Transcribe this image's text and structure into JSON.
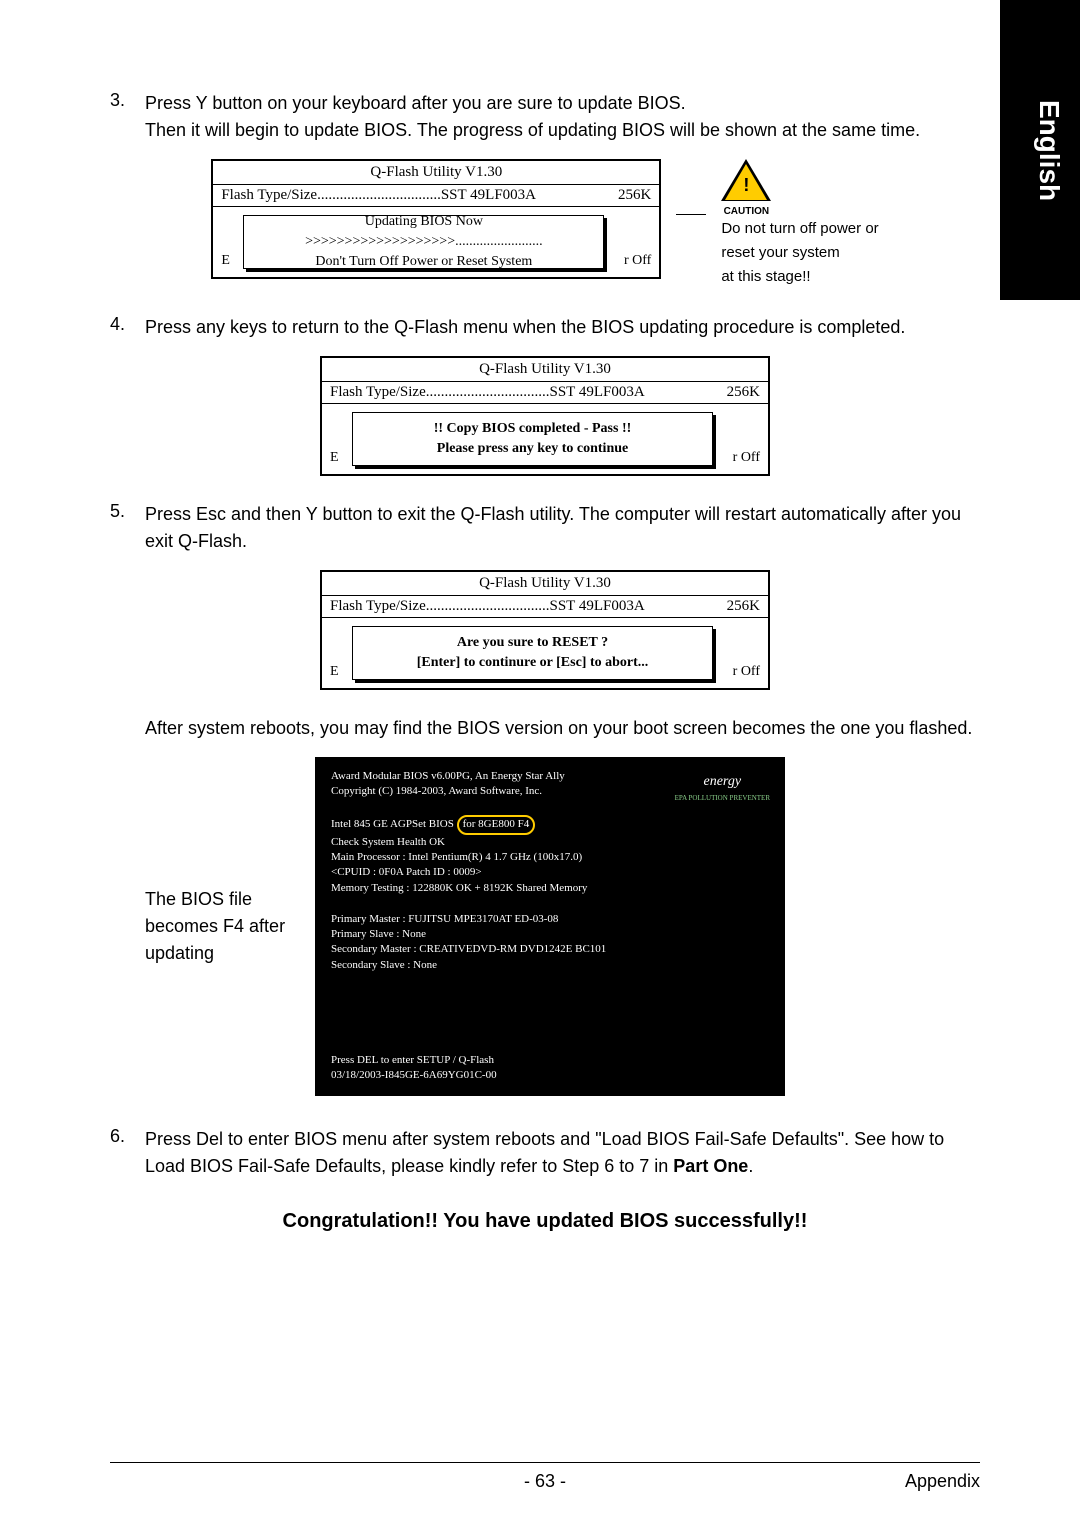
{
  "sidebar": {
    "label": "English"
  },
  "steps": {
    "s3": {
      "num": "3.",
      "line1": "Press Y button on your keyboard after you are sure to update BIOS.",
      "line2": "Then it will begin to update BIOS. The progress of updating BIOS will be shown at the same time."
    },
    "s4": {
      "num": "4.",
      "text": "Press any keys to return to the Q-Flash menu when the BIOS updating procedure is completed."
    },
    "s5": {
      "num": "5.",
      "text": "Press Esc and then Y button to exit the Q-Flash utility. The computer will restart automatically after you exit Q-Flash."
    },
    "s6": {
      "num": "6.",
      "line1": "Press Del to enter BIOS menu after system reboots and \"Load BIOS Fail-Safe Defaults\". See how to Load BIOS Fail-Safe Defaults, please kindly refer to Step 6 to 7 in ",
      "bold": "Part One",
      "line2": "."
    }
  },
  "qflash": {
    "title": "Q-Flash Utility V1.30",
    "flash_label": "Flash Type/Size.................................SST 49LF003A",
    "size": "256K",
    "bg_left": "E",
    "bg_right": "r Off",
    "box1": {
      "l1": "Updating BIOS Now",
      "l2": ">>>>>>>>>>>>>>>>>>>.........................",
      "l3": "Don't Turn Off Power or Reset System"
    },
    "box2": {
      "l1": "!! Copy BIOS completed - Pass !!",
      "l2": "Please press any key to continue"
    },
    "box3": {
      "l1": "Are you sure to RESET ?",
      "l2": "[Enter] to continure or [Esc] to abort..."
    }
  },
  "caution": {
    "label": "CAUTION",
    "l1": "Do not turn off power or",
    "l2": "reset your system",
    "l3": "at this stage!!"
  },
  "after_reboot": "After system reboots, you may find the BIOS version on your boot screen becomes the one you flashed.",
  "bios_label": {
    "l1": "The BIOS file",
    "l2": "becomes F4 after",
    "l3": "updating"
  },
  "bios_screen": {
    "l1": "Award Modular BIOS v6.00PG, An Energy Star Ally",
    "l2": "Copyright (C) 1984-2003, Award Software, Inc.",
    "l3a": "Intel 845 GE AGPSet BIOS ",
    "l3b": "for 8GE800 F4",
    "l4": "Check System Health OK",
    "l5": "Main Processor : Intel Pentium(R) 4  1.7 GHz (100x17.0)",
    "l6": "<CPUID : 0F0A Patch ID : 0009>",
    "l7": "Memory Testing  : 122880K OK + 8192K Shared Memory",
    "l8": "Primary Master : FUJITSU MPE3170AT ED-03-08",
    "l9": "Primary Slave : None",
    "l10": "Secondary Master : CREATIVEDVD-RM DVD1242E BC101",
    "l11": "Secondary Slave : None",
    "l12": "Press DEL to enter SETUP / Q-Flash",
    "l13": "03/18/2003-I845GE-6A69YG01C-00",
    "energy": "energy",
    "energy_sub": "EPA  POLLUTION PREVENTER"
  },
  "congrat": "Congratulation!! You have updated BIOS successfully!!",
  "footer": {
    "page": "- 63 -",
    "section": "Appendix"
  }
}
